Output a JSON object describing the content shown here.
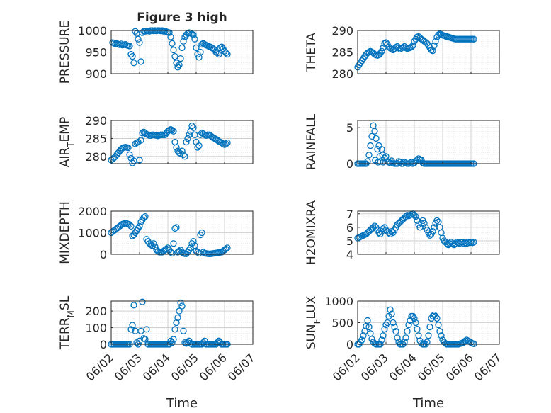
{
  "figure": {
    "title": "Figure 3 high",
    "xlabel": "Time",
    "x_ticks": [
      "06/02",
      "06/03",
      "06/04",
      "06/05",
      "06/06",
      "06/07"
    ],
    "marker_color": "#0072BD",
    "grid": "on (major and minor, dotted)"
  },
  "chart_data": [
    {
      "type": "scatter",
      "ylabel": "PRESSURE",
      "yticks": [
        900,
        950,
        1000
      ],
      "ylim": [
        900,
        1000
      ],
      "x": [
        2.05,
        2.1,
        2.15,
        2.2,
        2.25,
        2.3,
        2.35,
        2.4,
        2.45,
        2.5,
        2.55,
        2.6,
        2.65,
        2.7,
        2.75,
        2.8,
        2.85,
        2.9,
        2.95,
        3.0,
        3.05,
        3.1,
        3.15,
        3.2,
        3.25,
        3.3,
        3.35,
        3.4,
        3.45,
        3.5,
        3.55,
        3.6,
        3.65,
        3.7,
        3.75,
        3.8,
        3.85,
        3.9,
        3.95,
        4.0,
        4.05,
        4.1,
        4.15,
        4.2,
        4.25,
        4.3,
        4.35,
        4.4,
        4.45,
        4.5,
        4.55,
        4.6,
        4.65,
        4.7,
        4.75,
        4.8,
        4.85,
        4.9,
        4.95,
        5.0,
        5.05,
        5.1,
        5.15,
        5.2,
        5.25,
        5.3,
        5.35,
        5.4,
        5.45,
        5.5,
        5.55,
        5.6,
        5.65,
        5.7,
        5.75,
        5.8,
        5.85,
        5.9,
        5.95,
        6.0,
        6.05,
        6.1
      ],
      "y": [
        972,
        971,
        969,
        970,
        968,
        967,
        969,
        966,
        967,
        968,
        966,
        965,
        964,
        945,
        940,
        925,
        998,
        993,
        980,
        972,
        928,
        995,
        998,
        998,
        999,
        999,
        998,
        1000,
        1000,
        999,
        1000,
        999,
        1000,
        1000,
        999,
        1000,
        998,
        999,
        997,
        996,
        995,
        985,
        970,
        955,
        940,
        925,
        915,
        920,
        935,
        960,
        975,
        985,
        990,
        993,
        995,
        994,
        992,
        990,
        980,
        960,
        945,
        938,
        950,
        968,
        970,
        968,
        966,
        965,
        963,
        962,
        960,
        958,
        955,
        950,
        948,
        945,
        960,
        962,
        958,
        952,
        948,
        945
      ]
    },
    {
      "type": "scatter",
      "ylabel": "THETA",
      "yticks": [
        280,
        285,
        290
      ],
      "ylim": [
        280,
        290
      ],
      "x": [
        2.0,
        2.05,
        2.1,
        2.15,
        2.2,
        2.25,
        2.3,
        2.35,
        2.4,
        2.45,
        2.5,
        2.55,
        2.6,
        2.65,
        2.7,
        2.75,
        2.8,
        2.85,
        2.9,
        2.95,
        3.0,
        3.05,
        3.1,
        3.15,
        3.2,
        3.25,
        3.3,
        3.35,
        3.4,
        3.45,
        3.5,
        3.55,
        3.6,
        3.65,
        3.7,
        3.75,
        3.8,
        3.85,
        3.9,
        3.95,
        4.0,
        4.05,
        4.1,
        4.15,
        4.2,
        4.25,
        4.3,
        4.35,
        4.4,
        4.45,
        4.5,
        4.55,
        4.6,
        4.65,
        4.7,
        4.75,
        4.8,
        4.85,
        4.9,
        4.95,
        5.0,
        5.05,
        5.1,
        5.15,
        5.2,
        5.25,
        5.3,
        5.35,
        5.4,
        5.45,
        5.5,
        5.55,
        5.6,
        5.65,
        5.7,
        5.75,
        5.8,
        5.85,
        5.9,
        5.95,
        6.0,
        6.05,
        6.1
      ],
      "y": [
        281.5,
        282.0,
        282.5,
        283.0,
        283.5,
        284.0,
        284.5,
        284.8,
        285.0,
        285.2,
        285.0,
        284.8,
        284.5,
        284.3,
        284.2,
        284.4,
        284.7,
        285.2,
        286.0,
        287.0,
        287.2,
        286.8,
        286.2,
        285.9,
        285.7,
        285.5,
        285.8,
        286.1,
        286.3,
        286.0,
        285.7,
        285.9,
        286.1,
        286.3,
        286.0,
        285.8,
        285.9,
        286.0,
        286.2,
        286.5,
        287.5,
        288.0,
        288.5,
        288.6,
        288.3,
        288.0,
        287.8,
        287.5,
        287.3,
        287.0,
        286.5,
        286.0,
        285.5,
        285.3,
        286.5,
        287.5,
        288.5,
        289.0,
        289.2,
        289.1,
        288.9,
        288.8,
        288.7,
        288.6,
        288.5,
        288.4,
        288.3,
        288.2,
        288.1,
        288.0,
        288.0,
        288.0,
        288.0,
        288.0,
        288.0,
        288.0,
        288.0,
        288.0,
        288.0,
        288.0,
        288.0,
        288.0,
        288.0
      ]
    },
    {
      "type": "scatter",
      "ylabel": "AIR_TEMP",
      "yticks": [
        280,
        285,
        290
      ],
      "ylim": [
        278,
        290
      ],
      "x": [
        2.0,
        2.05,
        2.1,
        2.15,
        2.2,
        2.25,
        2.3,
        2.35,
        2.4,
        2.45,
        2.5,
        2.55,
        2.6,
        2.65,
        2.7,
        2.75,
        2.8,
        2.85,
        2.9,
        2.95,
        3.0,
        3.05,
        3.1,
        3.15,
        3.2,
        3.25,
        3.3,
        3.35,
        3.4,
        3.45,
        3.5,
        3.55,
        3.6,
        3.65,
        3.7,
        3.75,
        3.8,
        3.85,
        3.9,
        3.95,
        4.0,
        4.05,
        4.1,
        4.15,
        4.2,
        4.25,
        4.3,
        4.35,
        4.4,
        4.45,
        4.5,
        4.55,
        4.6,
        4.65,
        4.7,
        4.75,
        4.8,
        4.85,
        4.9,
        4.95,
        5.0,
        5.05,
        5.1,
        5.15,
        5.2,
        5.25,
        5.3,
        5.35,
        5.4,
        5.45,
        5.5,
        5.55,
        5.6,
        5.65,
        5.7,
        5.75,
        5.8,
        5.85,
        5.9,
        5.95,
        6.0,
        6.05,
        6.1
      ],
      "y": [
        279.0,
        279.3,
        279.6,
        280.0,
        280.5,
        281.0,
        281.5,
        282.0,
        282.3,
        282.5,
        282.6,
        282.5,
        282.4,
        280.5,
        279.5,
        278.2,
        278.8,
        283.5,
        283.8,
        284.0,
        279.0,
        284.5,
        286.5,
        286.8,
        286.5,
        286.2,
        286.0,
        285.8,
        285.8,
        286.0,
        286.0,
        285.9,
        285.8,
        285.7,
        285.9,
        286.0,
        286.0,
        286.0,
        286.0,
        286.5,
        287.0,
        287.3,
        287.5,
        287.3,
        287.0,
        284.0,
        282.5,
        281.5,
        281.0,
        280.8,
        281.5,
        280.5,
        280.0,
        284.0,
        285.0,
        286.0,
        287.0,
        288.5,
        288.0,
        286.0,
        284.0,
        282.5,
        283.0,
        286.0,
        286.5,
        286.3,
        286.0,
        285.8,
        286.0,
        286.0,
        285.8,
        285.5,
        285.2,
        285.0,
        284.8,
        284.5,
        284.2,
        284.0,
        283.8,
        283.5,
        283.3,
        283.5,
        283.8
      ]
    },
    {
      "type": "scatter",
      "ylabel": "RAINFALL",
      "yticks": [
        0,
        5
      ],
      "ylim": [
        0,
        6
      ],
      "x": [
        2.0,
        2.05,
        2.1,
        2.15,
        2.2,
        2.25,
        2.3,
        2.35,
        2.4,
        2.45,
        2.5,
        2.55,
        2.6,
        2.62,
        2.65,
        2.7,
        2.72,
        2.75,
        2.78,
        2.8,
        2.85,
        2.88,
        2.9,
        2.95,
        3.0,
        3.05,
        3.1,
        3.15,
        3.2,
        3.25,
        3.3,
        3.35,
        3.4,
        3.45,
        3.5,
        3.55,
        3.6,
        3.65,
        3.7,
        3.75,
        3.8,
        3.85,
        3.9,
        3.95,
        4.0,
        4.05,
        4.1,
        4.15,
        4.2,
        4.25,
        4.3,
        4.35,
        4.4,
        4.45,
        4.5,
        4.55,
        4.6,
        4.65,
        4.7,
        4.75,
        4.8,
        4.85,
        4.9,
        4.95,
        5.0,
        5.05,
        5.1,
        5.15,
        5.2,
        5.25,
        5.3,
        5.35,
        5.4,
        5.45,
        5.5,
        5.55,
        5.6,
        5.65,
        5.7,
        5.75,
        5.8,
        5.85,
        5.9,
        5.95,
        6.0,
        6.05,
        6.1
      ],
      "y": [
        0,
        0,
        0,
        0,
        0,
        0,
        0,
        0.3,
        1.2,
        2.5,
        3.8,
        5.3,
        4.5,
        0.5,
        3.5,
        2.0,
        0.2,
        2.5,
        1.0,
        0.3,
        2.0,
        1.2,
        0.2,
        0.8,
        1.0,
        0.3,
        0.2,
        0.1,
        0.4,
        0.1,
        0,
        0,
        0,
        0.3,
        0.2,
        0,
        0,
        0.2,
        0.1,
        0,
        0,
        0.1,
        0.2,
        0,
        0.1,
        0.3,
        0.5,
        0.7,
        0.6,
        0.5,
        0.1,
        0,
        0,
        0,
        0,
        0,
        0,
        0,
        0,
        0,
        0,
        0,
        0,
        0,
        0,
        0,
        0,
        0,
        0,
        0,
        0,
        0,
        0,
        0,
        0,
        0,
        0,
        0,
        0,
        0,
        0,
        0,
        0,
        0,
        0,
        0,
        0
      ]
    },
    {
      "type": "scatter",
      "ylabel": "MIXDEPTH",
      "yticks": [
        0,
        1000,
        2000
      ],
      "ylim": [
        0,
        2000
      ],
      "x": [
        2.0,
        2.05,
        2.1,
        2.15,
        2.2,
        2.25,
        2.3,
        2.35,
        2.4,
        2.45,
        2.5,
        2.55,
        2.6,
        2.65,
        2.7,
        2.75,
        2.8,
        2.85,
        2.9,
        2.95,
        3.0,
        3.05,
        3.1,
        3.15,
        3.2,
        3.25,
        3.3,
        3.35,
        3.4,
        3.45,
        3.5,
        3.55,
        3.6,
        3.65,
        3.7,
        3.75,
        3.8,
        3.85,
        3.9,
        3.95,
        4.0,
        4.05,
        4.1,
        4.15,
        4.2,
        4.25,
        4.3,
        4.35,
        4.4,
        4.45,
        4.5,
        4.55,
        4.6,
        4.65,
        4.7,
        4.75,
        4.8,
        4.85,
        4.9,
        4.95,
        5.0,
        5.05,
        5.1,
        5.15,
        5.2,
        5.25,
        5.3,
        5.35,
        5.4,
        5.45,
        5.5,
        5.55,
        5.6,
        5.65,
        5.7,
        5.75,
        5.8,
        5.85,
        5.9,
        5.95,
        6.0,
        6.05,
        6.1
      ],
      "y": [
        1000,
        1050,
        1100,
        1150,
        1200,
        1250,
        1300,
        1350,
        1400,
        1420,
        1450,
        1430,
        1400,
        1380,
        1300,
        850,
        900,
        1000,
        1100,
        1200,
        1300,
        1500,
        1600,
        1700,
        1750,
        700,
        600,
        500,
        450,
        400,
        500,
        350,
        200,
        150,
        100,
        100,
        100,
        150,
        200,
        250,
        300,
        200,
        100,
        50,
        500,
        1200,
        1250,
        100,
        150,
        200,
        100,
        50,
        30,
        20,
        100,
        200,
        300,
        500,
        600,
        400,
        150,
        100,
        50,
        900,
        1000,
        100,
        50,
        40,
        30,
        20,
        20,
        30,
        40,
        50,
        60,
        70,
        80,
        90,
        100,
        150,
        200,
        250,
        300
      ]
    },
    {
      "type": "scatter",
      "ylabel": "H2OMIXRA",
      "yticks": [
        4,
        5,
        6,
        7
      ],
      "ylim": [
        4,
        7.2
      ],
      "x": [
        2.0,
        2.05,
        2.1,
        2.15,
        2.2,
        2.25,
        2.3,
        2.35,
        2.4,
        2.45,
        2.5,
        2.55,
        2.6,
        2.65,
        2.7,
        2.75,
        2.8,
        2.85,
        2.9,
        2.95,
        3.0,
        3.05,
        3.1,
        3.15,
        3.2,
        3.25,
        3.3,
        3.35,
        3.4,
        3.45,
        3.5,
        3.55,
        3.6,
        3.65,
        3.7,
        3.75,
        3.8,
        3.85,
        3.9,
        3.95,
        4.0,
        4.05,
        4.1,
        4.15,
        4.2,
        4.25,
        4.3,
        4.35,
        4.4,
        4.45,
        4.5,
        4.55,
        4.6,
        4.65,
        4.7,
        4.75,
        4.8,
        4.85,
        4.9,
        4.95,
        5.0,
        5.05,
        5.1,
        5.15,
        5.2,
        5.25,
        5.3,
        5.35,
        5.4,
        5.45,
        5.5,
        5.55,
        5.6,
        5.65,
        5.7,
        5.75,
        5.8,
        5.85,
        5.9,
        5.95,
        6.0,
        6.05,
        6.1
      ],
      "y": [
        5.2,
        5.25,
        5.3,
        5.35,
        5.4,
        5.45,
        5.5,
        5.6,
        5.7,
        5.8,
        5.9,
        6.0,
        6.1,
        6.0,
        5.8,
        5.6,
        5.5,
        5.7,
        5.9,
        6.0,
        5.8,
        5.7,
        5.6,
        5.5,
        5.7,
        5.6,
        5.8,
        6.0,
        6.2,
        6.3,
        6.4,
        6.5,
        6.6,
        6.7,
        6.8,
        6.9,
        6.85,
        6.9,
        6.95,
        7.0,
        6.9,
        6.8,
        6.5,
        6.2,
        6.0,
        6.3,
        6.5,
        6.3,
        6.0,
        5.8,
        5.6,
        5.4,
        5.5,
        5.7,
        6.0,
        6.3,
        6.5,
        6.4,
        6.0,
        5.6,
        5.2,
        5.0,
        4.9,
        4.8,
        4.7,
        4.8,
        4.9,
        4.8,
        4.7,
        4.8,
        4.9,
        4.85,
        4.8,
        4.9,
        4.9,
        4.8,
        4.85,
        4.8,
        4.9,
        4.85,
        4.9,
        4.85,
        4.9
      ]
    },
    {
      "type": "scatter",
      "ylabel": "TERR_MSL",
      "yticks": [
        0,
        100,
        200
      ],
      "ylim": [
        0,
        260
      ],
      "x": [
        2.0,
        2.05,
        2.1,
        2.15,
        2.2,
        2.25,
        2.3,
        2.35,
        2.4,
        2.45,
        2.5,
        2.55,
        2.6,
        2.65,
        2.7,
        2.75,
        2.8,
        2.85,
        2.9,
        2.95,
        3.0,
        3.05,
        3.1,
        3.15,
        3.2,
        3.25,
        3.3,
        3.35,
        3.4,
        3.45,
        3.5,
        3.55,
        3.6,
        3.65,
        3.7,
        3.75,
        3.8,
        3.85,
        3.9,
        3.95,
        4.0,
        4.05,
        4.1,
        4.15,
        4.2,
        4.25,
        4.3,
        4.35,
        4.4,
        4.45,
        4.5,
        4.55,
        4.6,
        4.65,
        4.7,
        4.75,
        4.8,
        4.85,
        4.9,
        4.95,
        5.0,
        5.05,
        5.1,
        5.15,
        5.2,
        5.25,
        5.3,
        5.35,
        5.4,
        5.45,
        5.5,
        5.55,
        5.6,
        5.65,
        5.7,
        5.75,
        5.8,
        5.85,
        5.9,
        5.95,
        6.0,
        6.05,
        6.1
      ],
      "y": [
        0,
        0,
        0,
        0,
        0,
        0,
        0,
        0,
        0,
        0,
        0,
        0,
        0,
        0,
        90,
        115,
        235,
        80,
        10,
        0,
        20,
        80,
        255,
        35,
        30,
        90,
        0,
        0,
        0,
        0,
        0,
        0,
        0,
        0,
        0,
        0,
        0,
        0,
        0,
        0,
        0,
        0,
        20,
        10,
        30,
        90,
        130,
        160,
        200,
        250,
        230,
        80,
        10,
        5,
        10,
        20,
        5,
        0,
        0,
        0,
        0,
        0,
        0,
        0,
        0,
        10,
        20,
        0,
        0,
        0,
        0,
        0,
        0,
        0,
        0,
        10,
        20,
        10,
        0,
        0,
        0,
        0,
        0
      ]
    },
    {
      "type": "scatter",
      "ylabel": "SUN_FLUX",
      "yticks": [
        0,
        500,
        1000
      ],
      "ylim": [
        0,
        1000
      ],
      "x": [
        2.0,
        2.05,
        2.1,
        2.15,
        2.2,
        2.25,
        2.3,
        2.35,
        2.4,
        2.45,
        2.5,
        2.55,
        2.6,
        2.65,
        2.7,
        2.75,
        2.8,
        2.85,
        2.9,
        2.95,
        3.0,
        3.05,
        3.1,
        3.15,
        3.2,
        3.25,
        3.3,
        3.35,
        3.4,
        3.45,
        3.5,
        3.55,
        3.6,
        3.65,
        3.7,
        3.75,
        3.8,
        3.85,
        3.9,
        3.95,
        4.0,
        4.05,
        4.1,
        4.15,
        4.2,
        4.25,
        4.3,
        4.35,
        4.4,
        4.45,
        4.5,
        4.55,
        4.6,
        4.65,
        4.7,
        4.75,
        4.8,
        4.85,
        4.9,
        4.95,
        5.0,
        5.05,
        5.1,
        5.15,
        5.2,
        5.25,
        5.3,
        5.35,
        5.4,
        5.45,
        5.5,
        5.55,
        5.6,
        5.65,
        5.7,
        5.75,
        5.8,
        5.85,
        5.9,
        5.95,
        6.0,
        6.05,
        6.1
      ],
      "y": [
        0,
        0,
        50,
        100,
        200,
        300,
        420,
        550,
        400,
        250,
        120,
        50,
        20,
        0,
        0,
        0,
        0,
        100,
        200,
        350,
        450,
        500,
        650,
        800,
        700,
        500,
        400,
        300,
        150,
        50,
        0,
        0,
        0,
        50,
        150,
        300,
        450,
        550,
        650,
        650,
        600,
        500,
        350,
        200,
        80,
        20,
        0,
        0,
        0,
        50,
        200,
        400,
        600,
        650,
        680,
        650,
        600,
        450,
        300,
        200,
        100,
        50,
        20,
        0,
        0,
        0,
        0,
        0,
        0,
        0,
        0,
        0,
        10,
        20,
        30,
        50,
        80,
        100,
        80,
        60,
        40,
        20,
        10
      ]
    }
  ]
}
